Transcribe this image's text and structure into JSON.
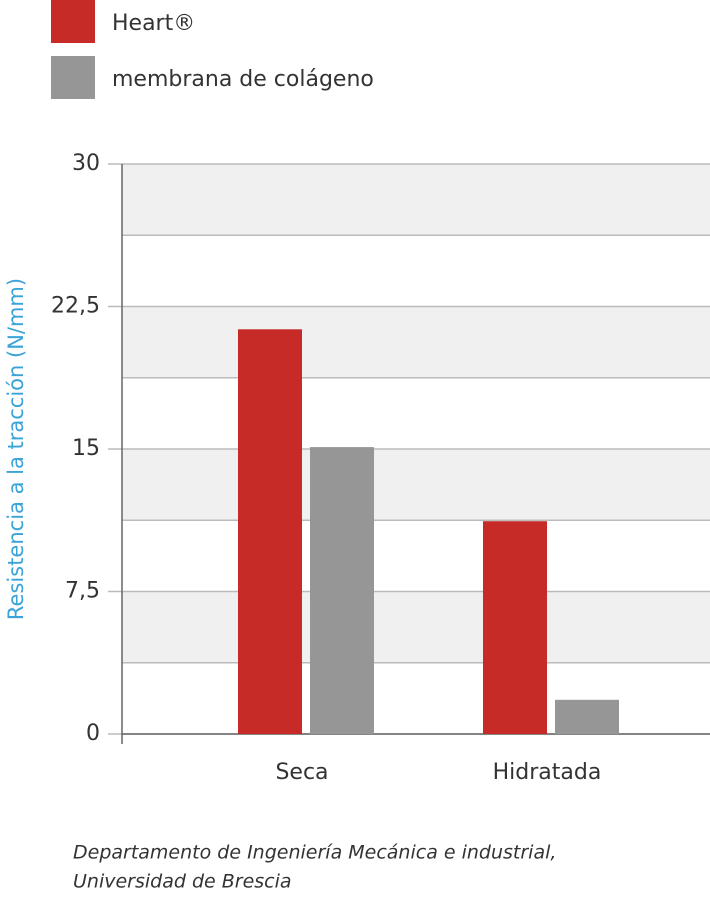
{
  "chart_data": {
    "type": "bar",
    "categories": [
      "Seca",
      "Hidratada"
    ],
    "series": [
      {
        "name": "Heart®",
        "color": "#c62b27",
        "values": [
          21.3,
          11.2
        ]
      },
      {
        "name": "membrana de colágeno",
        "color": "#969696",
        "values": [
          15.1,
          1.8
        ]
      }
    ],
    "ylabel": "Resistencia a la tracción (N/mm)",
    "ylim": [
      0,
      30
    ],
    "yticks": [
      0,
      {
        "value": 7.5,
        "label": "7,5"
      },
      15,
      {
        "value": 22.5,
        "label": "22,5"
      },
      30
    ],
    "minor_yticks": [
      3.75,
      11.25,
      18.75,
      26.25
    ],
    "grid": true,
    "source": [
      "Departamento de Ingeniería Mecánica e industrial,",
      "Universidad de Brescia"
    ]
  }
}
